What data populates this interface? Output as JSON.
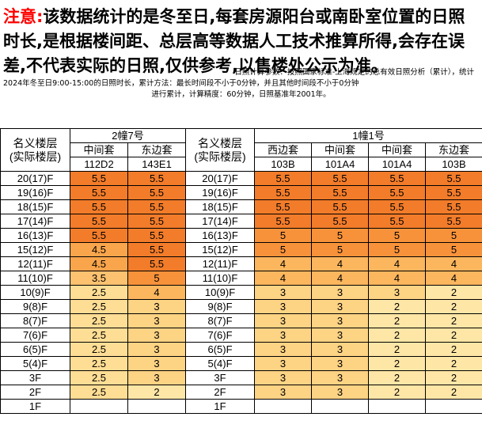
{
  "notice": {
    "lead": "注意:",
    "main": "该数据统计的是冬至日,每套房源阳台或南卧室位置的日照时长,是根据楼间距、总层高等数据人工技术推算所得,会存在误差,不代表实际的日照,仅供参考,以售楼处公示为准。",
    "params_line1": "日照计算参数：按照国家标准-上海规定的总有效日照分析（累计），统计",
    "params_line2": "2024年冬至日9:00-15:00的日照时长，累计方法：最长时间段不小于0分钟，并且其他时间段不小于0分钟",
    "params_line3": "进行累计，计算精度：60分钟，日照基准年2001年。"
  },
  "colors": {
    "5.5": "#f27c2a",
    "5": "#f7923a",
    "4.5": "#f9a54c",
    "4": "#fbb65e",
    "3.5": "#fcc270",
    "3": "#fdd384",
    "2.5": "#fedd94",
    "2": "#fee6a6"
  },
  "table": {
    "floor_label_line1": "名义楼层",
    "floor_label_line2": "(实际楼层)",
    "buildings": [
      {
        "name": "2幢7号",
        "units": [
          {
            "type": "中间套",
            "code": "112D2"
          },
          {
            "type": "东边套",
            "code": "143E1"
          }
        ],
        "rows": [
          {
            "floor": "20(17)F",
            "values": [
              "5.5",
              "5.5"
            ]
          },
          {
            "floor": "19(16)F",
            "values": [
              "5.5",
              "5.5"
            ]
          },
          {
            "floor": "18(15)F",
            "values": [
              "5.5",
              "5.5"
            ]
          },
          {
            "floor": "17(14)F",
            "values": [
              "5.5",
              "5.5"
            ]
          },
          {
            "floor": "16(13)F",
            "values": [
              "5.5",
              "5.5"
            ]
          },
          {
            "floor": "15(12)F",
            "values": [
              "4.5",
              "5.5"
            ]
          },
          {
            "floor": "12(11)F",
            "values": [
              "4.5",
              "5.5"
            ]
          },
          {
            "floor": "11(10)F",
            "values": [
              "3.5",
              "5"
            ]
          },
          {
            "floor": "10(9)F",
            "values": [
              "2.5",
              "4"
            ]
          },
          {
            "floor": "9(8)F",
            "values": [
              "2.5",
              "3"
            ]
          },
          {
            "floor": "8(7)F",
            "values": [
              "2.5",
              "3"
            ]
          },
          {
            "floor": "7(6)F",
            "values": [
              "2.5",
              "3"
            ]
          },
          {
            "floor": "6(5)F",
            "values": [
              "2.5",
              "3"
            ]
          },
          {
            "floor": "5(4)F",
            "values": [
              "2.5",
              "3"
            ]
          },
          {
            "floor": "3F",
            "values": [
              "2.5",
              "3"
            ]
          },
          {
            "floor": "2F",
            "values": [
              "2.5",
              "2"
            ]
          },
          {
            "floor": "1F",
            "values": [
              "",
              ""
            ]
          }
        ]
      },
      {
        "name": "1幢1号",
        "units": [
          {
            "type": "西边套",
            "code": "103B"
          },
          {
            "type": "中间套",
            "code": "101A4"
          },
          {
            "type": "中间套",
            "code": "101A4"
          },
          {
            "type": "东边套",
            "code": "103B"
          }
        ],
        "rows": [
          {
            "floor": "20(17)F",
            "values": [
              "5.5",
              "5.5",
              "5.5",
              "5.5"
            ]
          },
          {
            "floor": "19(16)F",
            "values": [
              "5.5",
              "5.5",
              "5.5",
              "5.5"
            ]
          },
          {
            "floor": "18(15)F",
            "values": [
              "5.5",
              "5.5",
              "5.5",
              "5.5"
            ]
          },
          {
            "floor": "17(14)F",
            "values": [
              "5.5",
              "5.5",
              "5.5",
              "5.5"
            ]
          },
          {
            "floor": "16(13)F",
            "values": [
              "5",
              "5",
              "5",
              "5"
            ]
          },
          {
            "floor": "15(12)F",
            "values": [
              "5",
              "5",
              "5",
              "5"
            ]
          },
          {
            "floor": "12(11)F",
            "values": [
              "4",
              "4",
              "4",
              "4"
            ]
          },
          {
            "floor": "11(10)F",
            "values": [
              "4",
              "4",
              "4",
              "4"
            ]
          },
          {
            "floor": "10(9)F",
            "values": [
              "3",
              "3",
              "3",
              "2"
            ]
          },
          {
            "floor": "9(8)F",
            "values": [
              "3",
              "3",
              "2",
              "2"
            ]
          },
          {
            "floor": "8(7)F",
            "values": [
              "3",
              "3",
              "2",
              "2"
            ]
          },
          {
            "floor": "7(6)F",
            "values": [
              "3",
              "3",
              "2",
              "2"
            ]
          },
          {
            "floor": "6(5)F",
            "values": [
              "3",
              "3",
              "2",
              "2"
            ]
          },
          {
            "floor": "5(4)F",
            "values": [
              "3",
              "3",
              "2",
              "2"
            ]
          },
          {
            "floor": "3F",
            "values": [
              "3",
              "3",
              "2",
              "2"
            ]
          },
          {
            "floor": "2F",
            "values": [
              "3",
              "3",
              "2",
              "2"
            ]
          },
          {
            "floor": "1F",
            "values": [
              "",
              "",
              "",
              ""
            ]
          }
        ]
      }
    ]
  }
}
